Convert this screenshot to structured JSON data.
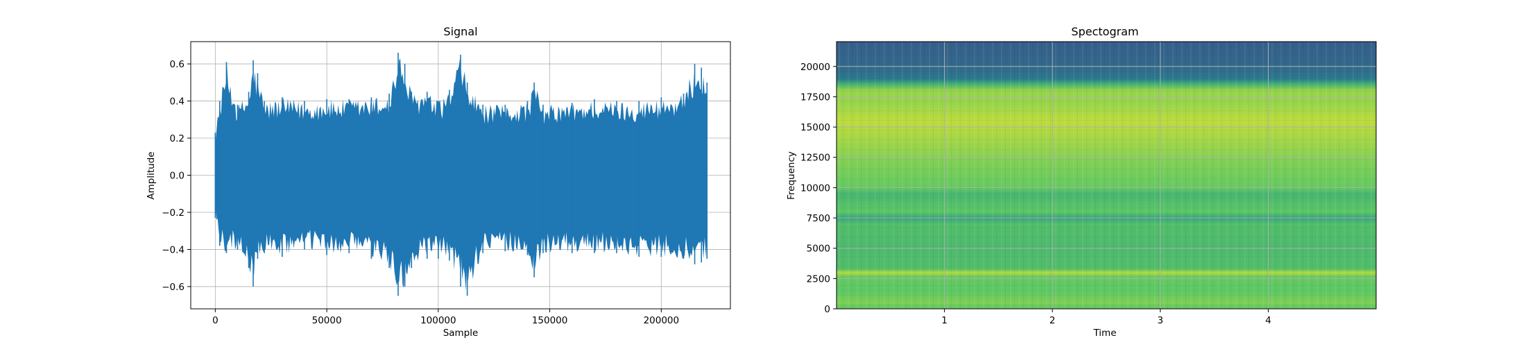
{
  "chart_data": [
    {
      "type": "line",
      "title": "Signal",
      "xlabel": "Sample",
      "ylabel": "Amplitude",
      "xlim": [
        -11000,
        231000
      ],
      "ylim": [
        -0.72,
        0.72
      ],
      "xticks": [
        0,
        50000,
        100000,
        150000,
        200000
      ],
      "xtick_labels": [
        "0",
        "50000",
        "100000",
        "150000",
        "200000"
      ],
      "yticks": [
        -0.6,
        -0.4,
        -0.2,
        0.0,
        0.2,
        0.4,
        0.6
      ],
      "ytick_labels": [
        "−0.6",
        "−0.4",
        "−0.2",
        "0.0",
        "0.2",
        "0.4",
        "0.6"
      ],
      "grid": true,
      "color": "#1f77b4",
      "series": [
        {
          "x_range": [
            0,
            220500
          ],
          "envelope": {
            "x": [
              0,
              2000,
              5000,
              10000,
              15000,
              17000,
              19000,
              22000,
              30000,
              40000,
              50000,
              60000,
              70000,
              78000,
              82000,
              85000,
              88000,
              95000,
              100000,
              105000,
              110000,
              113000,
              120000,
              130000,
              140000,
              143000,
              147000,
              160000,
              170000,
              180000,
              190000,
              200000,
              210000,
              215000,
              218000,
              220500
            ],
            "upper": [
              0.23,
              0.4,
              0.61,
              0.38,
              0.45,
              0.62,
              0.55,
              0.4,
              0.42,
              0.4,
              0.41,
              0.41,
              0.42,
              0.44,
              0.66,
              0.6,
              0.45,
              0.45,
              0.4,
              0.46,
              0.65,
              0.5,
              0.38,
              0.38,
              0.4,
              0.5,
              0.38,
              0.39,
              0.41,
              0.4,
              0.4,
              0.42,
              0.44,
              0.6,
              0.58,
              0.5
            ],
            "lower": [
              -0.23,
              -0.38,
              -0.42,
              -0.4,
              -0.5,
              -0.6,
              -0.45,
              -0.42,
              -0.44,
              -0.4,
              -0.43,
              -0.42,
              -0.45,
              -0.5,
              -0.65,
              -0.6,
              -0.5,
              -0.45,
              -0.45,
              -0.46,
              -0.6,
              -0.65,
              -0.42,
              -0.41,
              -0.43,
              -0.55,
              -0.42,
              -0.42,
              -0.42,
              -0.42,
              -0.44,
              -0.44,
              -0.45,
              -0.48,
              -0.47,
              -0.45
            ]
          }
        }
      ]
    },
    {
      "type": "heatmap",
      "title": "Spectogram",
      "xlabel": "Time",
      "ylabel": "Frequency",
      "xlim": [
        0,
        5
      ],
      "ylim": [
        0,
        22050
      ],
      "xticks": [
        1,
        2,
        3,
        4
      ],
      "xtick_labels": [
        "1",
        "2",
        "3",
        "4"
      ],
      "yticks": [
        0,
        2500,
        5000,
        7500,
        10000,
        12500,
        15000,
        17500,
        20000
      ],
      "ytick_labels": [
        "0",
        "2500",
        "5000",
        "7500",
        "10000",
        "12500",
        "15000",
        "17500",
        "20000"
      ],
      "grid": true,
      "colormap": "viridis",
      "frequency_profile": {
        "freq": [
          0,
          500,
          1500,
          2600,
          3000,
          3300,
          5000,
          7000,
          7500,
          8000,
          9500,
          10000,
          12000,
          14000,
          15500,
          17000,
          18000,
          18600,
          19000,
          20000,
          22050
        ],
        "level": [
          0.74,
          0.8,
          0.74,
          0.76,
          0.88,
          0.7,
          0.68,
          0.7,
          0.58,
          0.74,
          0.66,
          0.76,
          0.8,
          0.86,
          0.9,
          0.84,
          0.84,
          0.62,
          0.4,
          0.34,
          0.3
        ]
      }
    }
  ]
}
